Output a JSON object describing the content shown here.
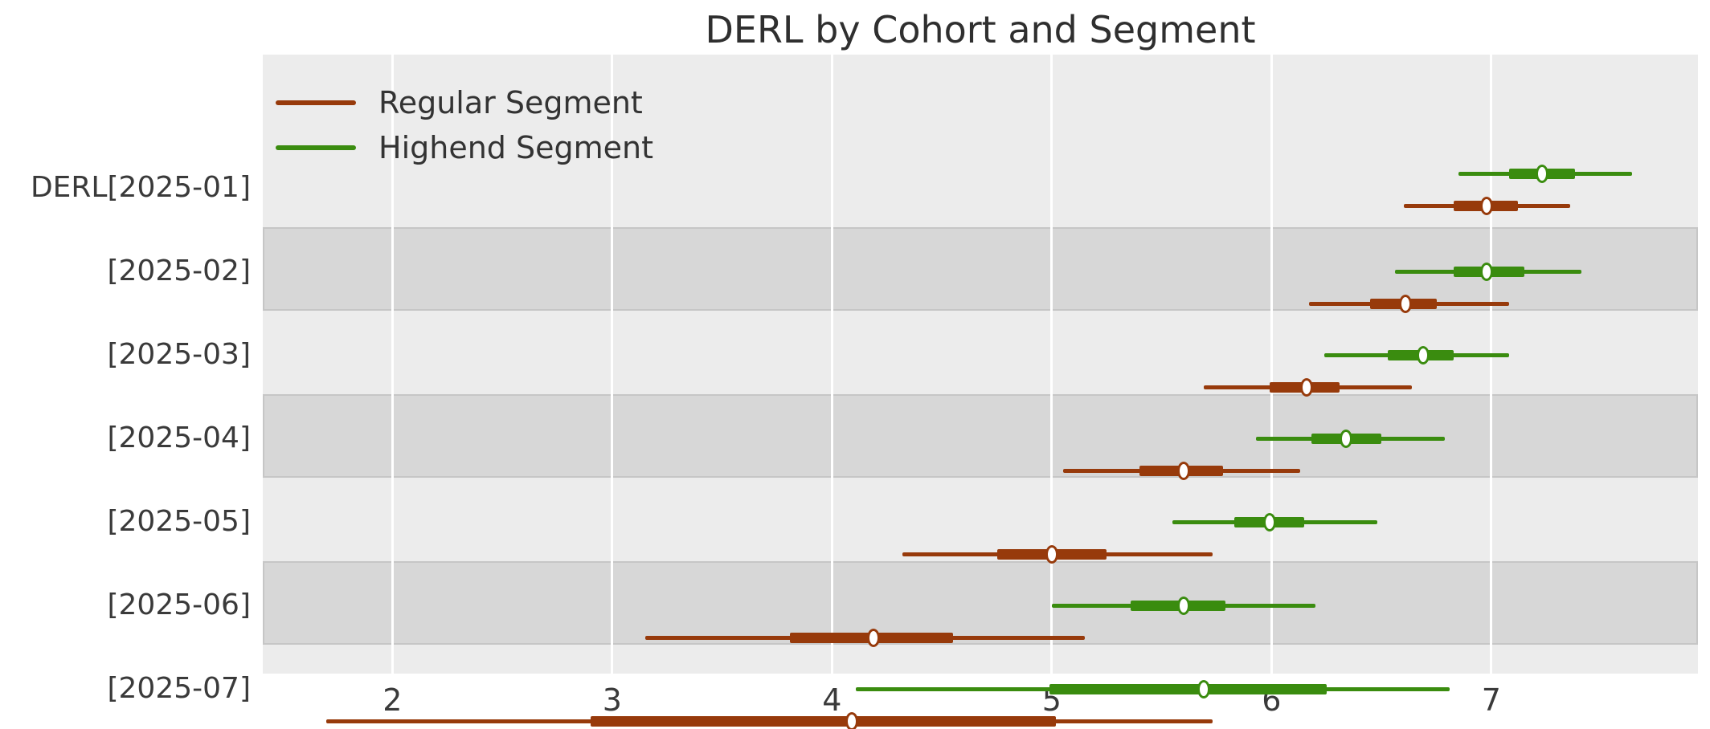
{
  "title": "DERL by Cohort and Segment",
  "colors": {
    "regular": "#973A0B",
    "highend": "#3A8C0F",
    "plot_background": "#ECECEC",
    "shaded_band": "#D7D7D7",
    "shaded_band_border": "#C6C6C6",
    "gridline": "#FFFFFF",
    "marker_face": "#FFFFFF",
    "text": "#333333"
  },
  "legend": [
    {
      "label": "Regular Segment",
      "color": "#973A0B"
    },
    {
      "label": "Highend Segment",
      "color": "#3A8C0F"
    }
  ],
  "chart_data": {
    "type": "scatter",
    "variant": "forest-interval-plot",
    "title": "DERL by Cohort and Segment",
    "xlabel": "",
    "ylabel": "",
    "xlim": [
      1.41,
      7.94
    ],
    "x_ticks": [
      2,
      3,
      4,
      5,
      6,
      7
    ],
    "grid": "vertical white gridlines on gray background",
    "legend_position": "upper left inside plot",
    "series_names": [
      "Regular Segment",
      "Highend Segment"
    ],
    "interval_structure": [
      "low",
      "q1",
      "median",
      "q3",
      "high"
    ],
    "rows": [
      {
        "label": "DERL[2025-01]",
        "shaded": false,
        "highend": {
          "low": 6.85,
          "q1": 7.08,
          "median": 7.23,
          "q3": 7.38,
          "high": 7.64
        },
        "regular": {
          "low": 6.6,
          "q1": 6.83,
          "median": 6.98,
          "q3": 7.12,
          "high": 7.36
        }
      },
      {
        "label": "[2025-02]",
        "shaded": true,
        "highend": {
          "low": 6.56,
          "q1": 6.83,
          "median": 6.98,
          "q3": 7.15,
          "high": 7.41
        },
        "regular": {
          "low": 6.17,
          "q1": 6.45,
          "median": 6.61,
          "q3": 6.75,
          "high": 7.08
        }
      },
      {
        "label": "[2025-03]",
        "shaded": false,
        "highend": {
          "low": 6.24,
          "q1": 6.53,
          "median": 6.69,
          "q3": 6.83,
          "high": 7.08
        },
        "regular": {
          "low": 5.69,
          "q1": 5.99,
          "median": 6.16,
          "q3": 6.31,
          "high": 6.64
        }
      },
      {
        "label": "[2025-04]",
        "shaded": true,
        "highend": {
          "low": 5.93,
          "q1": 6.18,
          "median": 6.34,
          "q3": 6.5,
          "high": 6.79
        },
        "regular": {
          "low": 5.05,
          "q1": 5.4,
          "median": 5.6,
          "q3": 5.78,
          "high": 6.13
        }
      },
      {
        "label": "[2025-05]",
        "shaded": false,
        "highend": {
          "low": 5.55,
          "q1": 5.83,
          "median": 5.99,
          "q3": 6.15,
          "high": 6.48
        },
        "regular": {
          "low": 4.32,
          "q1": 4.75,
          "median": 5.0,
          "q3": 5.25,
          "high": 5.73
        }
      },
      {
        "label": "[2025-06]",
        "shaded": true,
        "highend": {
          "low": 5.0,
          "q1": 5.36,
          "median": 5.6,
          "q3": 5.79,
          "high": 6.2
        },
        "regular": {
          "low": 3.15,
          "q1": 3.81,
          "median": 4.19,
          "q3": 4.55,
          "high": 5.15
        }
      },
      {
        "label": "[2025-07]",
        "shaded": false,
        "highend": {
          "low": 4.11,
          "q1": 4.99,
          "median": 5.69,
          "q3": 6.25,
          "high": 6.81
        },
        "regular": {
          "low": 1.7,
          "q1": 2.9,
          "median": 4.09,
          "q3": 5.02,
          "high": 5.73
        }
      }
    ]
  }
}
